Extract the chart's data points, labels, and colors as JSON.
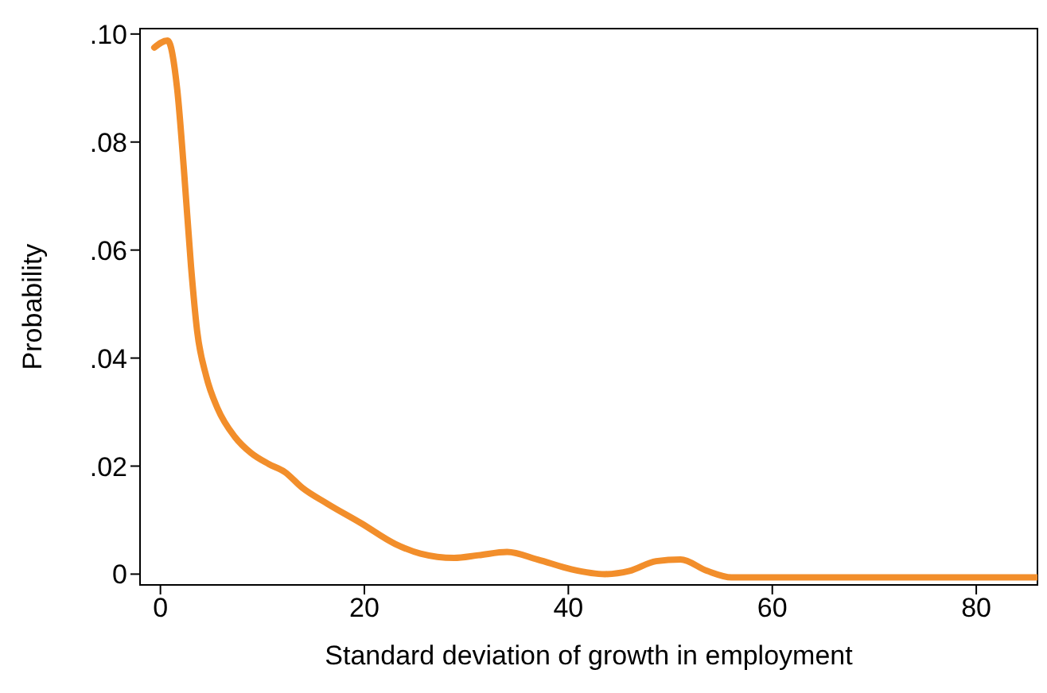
{
  "chart_data": {
    "type": "line",
    "xlabel": "Standard deviation of growth in employment",
    "ylabel": "Probability",
    "x": [
      -0.6,
      0.7,
      1.65,
      2.3,
      3,
      3.6,
      4.5,
      5.6,
      7.3,
      8.9,
      10.6,
      12.2,
      13.9,
      16.4,
      19.7,
      23,
      25.5,
      28.8,
      31.2,
      34,
      37,
      40.3,
      43.6,
      46,
      48.6,
      51,
      53.6,
      56,
      60,
      70,
      86
    ],
    "series": [
      {
        "color": "#f28e2b",
        "values": [
          0.0975,
          0.0988,
          0.0897,
          0.075,
          0.057,
          0.045,
          0.0366,
          0.0307,
          0.0254,
          0.0224,
          0.0204,
          0.0189,
          0.016,
          0.013,
          0.0094,
          0.0056,
          0.0038,
          0.003,
          0.0035,
          0.0041,
          0.0027,
          0.0009,
          0,
          0.0006,
          0.0024,
          0.0027,
          0.0006,
          -0.0006,
          -0.0006,
          -0.0006,
          -0.0006
        ]
      }
    ],
    "xlim": [
      -2,
      86
    ],
    "xticks": [
      0,
      20,
      40,
      60,
      80
    ],
    "ylim": [
      -0.002,
      0.101
    ],
    "yticks": [
      {
        "value": 0,
        "label": "0"
      },
      {
        "value": 0.02,
        "label": ".02"
      },
      {
        "value": 0.04,
        "label": ".04"
      },
      {
        "value": 0.06,
        "label": ".06"
      },
      {
        "value": 0.08,
        "label": ".08"
      },
      {
        "value": 0.1,
        "label": ".10"
      }
    ],
    "grid": false,
    "legend": false,
    "marker": "none",
    "line_style": "solid"
  }
}
